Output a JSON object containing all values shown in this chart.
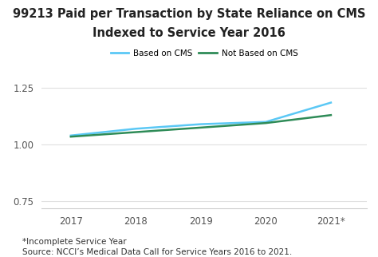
{
  "title_line1": "99213 Paid per Transaction by State Reliance on CMS",
  "title_line2": "Indexed to Service Year 2016",
  "x_labels": [
    "2017",
    "2018",
    "2019",
    "2020",
    "2021*"
  ],
  "x_values": [
    2017,
    2018,
    2019,
    2020,
    2021
  ],
  "cms_values": [
    1.04,
    1.07,
    1.09,
    1.1,
    1.185
  ],
  "not_cms_values": [
    1.035,
    1.055,
    1.075,
    1.095,
    1.13
  ],
  "cms_color": "#5BC8F5",
  "not_cms_color": "#2E8B57",
  "cms_label": "Based on CMS",
  "not_cms_label": "Not Based on CMS",
  "ylim": [
    0.72,
    1.32
  ],
  "yticks": [
    0.75,
    1.0,
    1.25
  ],
  "footnote1": "*Incomplete Service Year",
  "footnote2": "Source: NCCI’s Medical Data Call for Service Years 2016 to 2021.",
  "background_color": "#ffffff",
  "title_fontsize": 10.5,
  "legend_fontsize": 7.5,
  "tick_fontsize": 8.5,
  "footnote_fontsize": 7.5,
  "line_width": 1.8
}
